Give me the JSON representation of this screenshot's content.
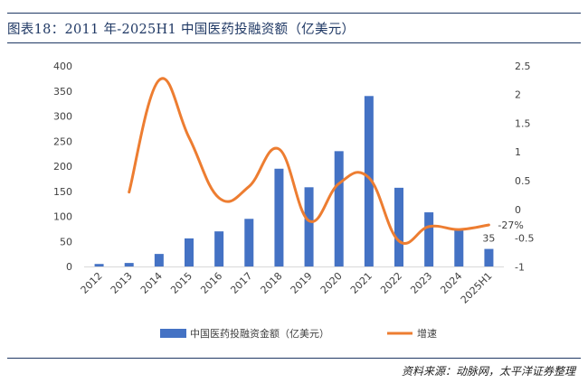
{
  "title": "图表18：2011 年-2025H1 中国医药投融资额（亿美元）",
  "source": "资料来源：动脉网，太平洋证券整理",
  "colors": {
    "bar": "#4472c4",
    "line": "#ed7d31",
    "title": "#1f3864"
  },
  "chart_data": {
    "type": "bar",
    "categories": [
      "2012",
      "2013",
      "2014",
      "2015",
      "2016",
      "2017",
      "2018",
      "2019",
      "2020",
      "2021",
      "2022",
      "2023",
      "2024",
      "2025H1"
    ],
    "series": [
      {
        "name": "中国医药投融资金额（亿美元）",
        "type": "bar",
        "axis": "left",
        "values": [
          5,
          7,
          25,
          56,
          70,
          95,
          195,
          158,
          230,
          340,
          157,
          108,
          75,
          35
        ]
      },
      {
        "name": "增速",
        "type": "line",
        "axis": "right",
        "smooth": true,
        "values": [
          null,
          0.3,
          2.25,
          1.25,
          0.2,
          0.4,
          1.05,
          -0.2,
          0.45,
          0.55,
          -0.55,
          -0.3,
          -0.35,
          -0.27
        ]
      }
    ],
    "yleft": {
      "lim": [
        0,
        400
      ],
      "ticks": [
        "0",
        "50",
        "100",
        "150",
        "200",
        "250",
        "300",
        "350",
        "400"
      ]
    },
    "yright": {
      "lim": [
        -1,
        2.5
      ],
      "ticks": [
        "-1",
        "-0.5",
        "0",
        "0.5",
        "1",
        "1.5",
        "2",
        "2.5"
      ]
    },
    "annotations": [
      {
        "text": "35",
        "category": "2025H1",
        "series": "bar"
      },
      {
        "text": "-27%",
        "category": "2025H1",
        "series": "line"
      }
    ],
    "legend_position": "bottom",
    "grid": false
  }
}
